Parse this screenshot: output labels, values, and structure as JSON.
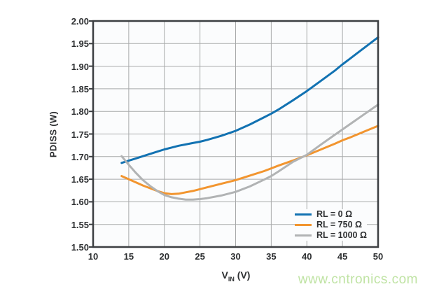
{
  "watermark": {
    "text": "www.cntronics.com",
    "color": "#bfe3a3"
  },
  "colors": {
    "plot_bg": "#fbfcfd",
    "grid": "#a7a9aa",
    "border": "#3c3f42",
    "text": "#2d2f31",
    "series_blue": "#1272b2",
    "series_orange": "#f2952f",
    "series_gray": "#b1b3b4"
  },
  "chart_data": {
    "type": "line",
    "title": "",
    "xlabel": "VIN (V)",
    "xlabel_parts": {
      "main": "V",
      "sub": "IN",
      "suffix": " (V)"
    },
    "ylabel": "PDISS (W)",
    "xlim": [
      10,
      50
    ],
    "ylim": [
      1.5,
      2.0
    ],
    "xticks": [
      10,
      15,
      20,
      25,
      30,
      35,
      40,
      45,
      50
    ],
    "ytick_labels": [
      "2.00",
      "1.95",
      "1.90",
      "1.85",
      "1.80",
      "1.75",
      "1.70",
      "1.65",
      "1.60",
      "1.55",
      "1.50"
    ],
    "grid": true,
    "legend_position": "lower right",
    "x": [
      14,
      15,
      16,
      17,
      18,
      19,
      20,
      21,
      22,
      23,
      24,
      25,
      26,
      28,
      30,
      32,
      34,
      35,
      36,
      38,
      40,
      42,
      44,
      45,
      46,
      48,
      50
    ],
    "series": [
      {
        "name": "RL = 0 Ω",
        "color": "#1272b2",
        "y": [
          1.686,
          1.691,
          1.696,
          1.701,
          1.706,
          1.711,
          1.716,
          1.72,
          1.724,
          1.727,
          1.73,
          1.733,
          1.737,
          1.746,
          1.757,
          1.771,
          1.787,
          1.795,
          1.804,
          1.824,
          1.845,
          1.868,
          1.891,
          1.904,
          1.916,
          1.94,
          1.964
        ]
      },
      {
        "name": "RL = 750 Ω",
        "color": "#f2952f",
        "y": [
          1.657,
          1.65,
          1.643,
          1.636,
          1.63,
          1.624,
          1.619,
          1.617,
          1.618,
          1.621,
          1.624,
          1.628,
          1.632,
          1.64,
          1.648,
          1.658,
          1.668,
          1.674,
          1.68,
          1.691,
          1.703,
          1.716,
          1.729,
          1.736,
          1.742,
          1.755,
          1.768
        ]
      },
      {
        "name": "RL = 1000 Ω",
        "color": "#b1b3b4",
        "y": [
          1.701,
          1.682,
          1.664,
          1.648,
          1.635,
          1.624,
          1.615,
          1.61,
          1.607,
          1.605,
          1.605,
          1.606,
          1.608,
          1.614,
          1.622,
          1.634,
          1.649,
          1.657,
          1.667,
          1.688,
          1.704,
          1.727,
          1.749,
          1.76,
          1.771,
          1.793,
          1.815
        ]
      }
    ]
  }
}
